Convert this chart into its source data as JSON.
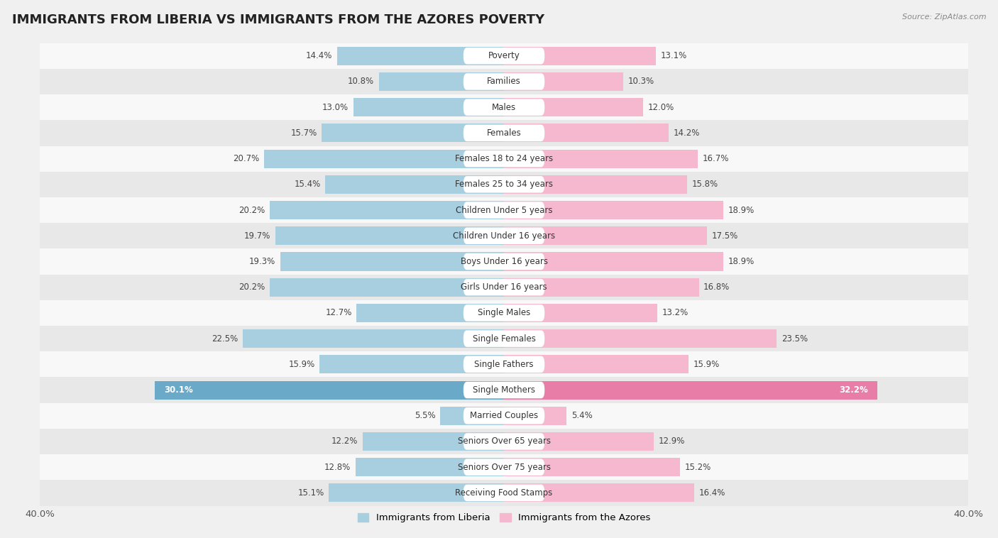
{
  "title": "IMMIGRANTS FROM LIBERIA VS IMMIGRANTS FROM THE AZORES POVERTY",
  "source": "Source: ZipAtlas.com",
  "categories": [
    "Poverty",
    "Families",
    "Males",
    "Females",
    "Females 18 to 24 years",
    "Females 25 to 34 years",
    "Children Under 5 years",
    "Children Under 16 years",
    "Boys Under 16 years",
    "Girls Under 16 years",
    "Single Males",
    "Single Females",
    "Single Fathers",
    "Single Mothers",
    "Married Couples",
    "Seniors Over 65 years",
    "Seniors Over 75 years",
    "Receiving Food Stamps"
  ],
  "liberia_values": [
    14.4,
    10.8,
    13.0,
    15.7,
    20.7,
    15.4,
    20.2,
    19.7,
    19.3,
    20.2,
    12.7,
    22.5,
    15.9,
    30.1,
    5.5,
    12.2,
    12.8,
    15.1
  ],
  "azores_values": [
    13.1,
    10.3,
    12.0,
    14.2,
    16.7,
    15.8,
    18.9,
    17.5,
    18.9,
    16.8,
    13.2,
    23.5,
    15.9,
    32.2,
    5.4,
    12.9,
    15.2,
    16.4
  ],
  "liberia_color": "#a8cfe0",
  "azores_color": "#f5b8ce",
  "liberia_highlight_color": "#6aaac8",
  "azores_highlight_color": "#e87da8",
  "xlim": 40.0,
  "background_color": "#f0f0f0",
  "row_color_light": "#f8f8f8",
  "row_color_dark": "#e8e8e8",
  "title_fontsize": 13,
  "label_fontsize": 8.5,
  "value_fontsize": 8.5,
  "legend_label_liberia": "Immigrants from Liberia",
  "legend_label_azores": "Immigrants from the Azores"
}
